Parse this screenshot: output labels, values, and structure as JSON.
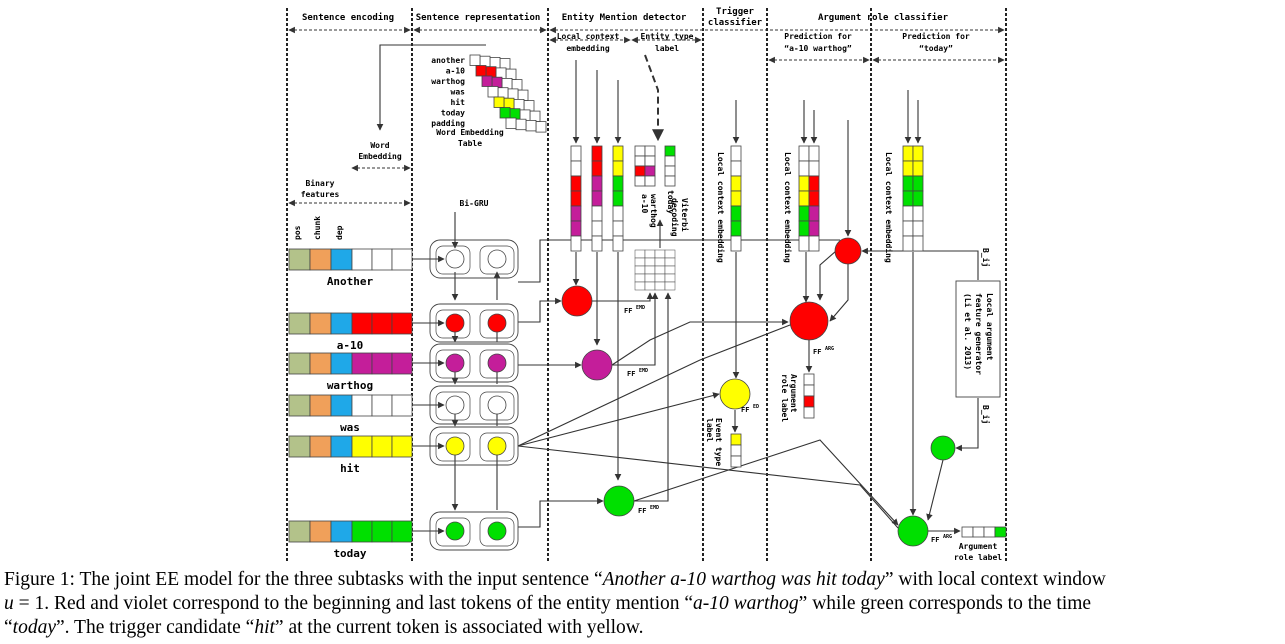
{
  "sections": {
    "sentence_encoding": "Sentence encoding",
    "sentence_representation": "Sentence representation",
    "entity_mention_detector": "Entity Mention detector",
    "trigger_classifier": [
      "Trigger",
      "classifier"
    ],
    "argument_role_classifier": "Argument role classifier",
    "local_context_embedding_header": [
      "Local context",
      "embedding"
    ],
    "entity_type_label_header": [
      "Entity type",
      "label"
    ],
    "prediction_a10": [
      "Prediction for",
      "“a-10 warthog”"
    ],
    "prediction_today": [
      "Prediction for",
      "“today”"
    ]
  },
  "labels": {
    "binary_features": [
      "Binary",
      "features"
    ],
    "feature_names": [
      "pos",
      "chunk",
      "dep"
    ],
    "word_embedding": [
      "Word",
      "Embedding"
    ],
    "word_embedding_table": [
      "Word Embedding",
      "Table"
    ],
    "bi_gru": "Bi-GRU",
    "viterbi": [
      "Viterbi",
      "decoding"
    ],
    "local_context_embedding": "Local context embedding",
    "event_type_label": [
      "Event type",
      "label"
    ],
    "argument_role_label_vertical": [
      "Argument",
      "role label"
    ],
    "argument_role_label": [
      "Argument",
      "role label"
    ],
    "local_argument_feature_generator": [
      "Local argument",
      "feature generator",
      "(Li et al. 2013)"
    ],
    "bij_top": "B_ij",
    "bij_bottom": "B_ij",
    "ff_emd": "FF",
    "emd_sup": "EMD",
    "ff_ed": "FF",
    "ed_sup": "ED",
    "ff_arg": "FF",
    "arg_sup": "ARG",
    "entity_tokens": [
      "a-10",
      "warthog",
      "today"
    ]
  },
  "vocabulary": [
    "another",
    "a-10",
    "warthog",
    "was",
    "hit",
    "today",
    "padding"
  ],
  "tokens": [
    "Another",
    "a-10",
    "warthog",
    "was",
    "hit",
    "today"
  ],
  "colors": {
    "pos": "#b3c28a",
    "chunk": "#f0a05a",
    "dep": "#1fa8e8",
    "begin_entity": "#ff0000",
    "last_entity": "#c41e9a",
    "trigger": "#ffff00",
    "time": "#00e000"
  },
  "caption": {
    "line1": [
      {
        "t": "Figure 1: ",
        "i": false
      },
      {
        "t": "The joint EE model for the three subtasks with the input sentence “",
        "i": false
      },
      {
        "t": "Another a-10 warthog was hit today",
        "i": true
      },
      {
        "t": "” with local context window",
        "i": false
      }
    ],
    "line2": [
      {
        "t": "u",
        "i": true
      },
      {
        "t": " = 1. Red and violet correspond to the beginning and last tokens of the entity mention “",
        "i": false
      },
      {
        "t": "a-10 warthog",
        "i": true
      },
      {
        "t": "” while green corresponds to the time",
        "i": false
      }
    ],
    "line3": [
      {
        "t": "“",
        "i": false
      },
      {
        "t": "today",
        "i": true
      },
      {
        "t": "”. The trigger candidate “",
        "i": false
      },
      {
        "t": "hit",
        "i": true
      },
      {
        "t": "” at the current token is associated with yellow.",
        "i": false
      }
    ]
  }
}
